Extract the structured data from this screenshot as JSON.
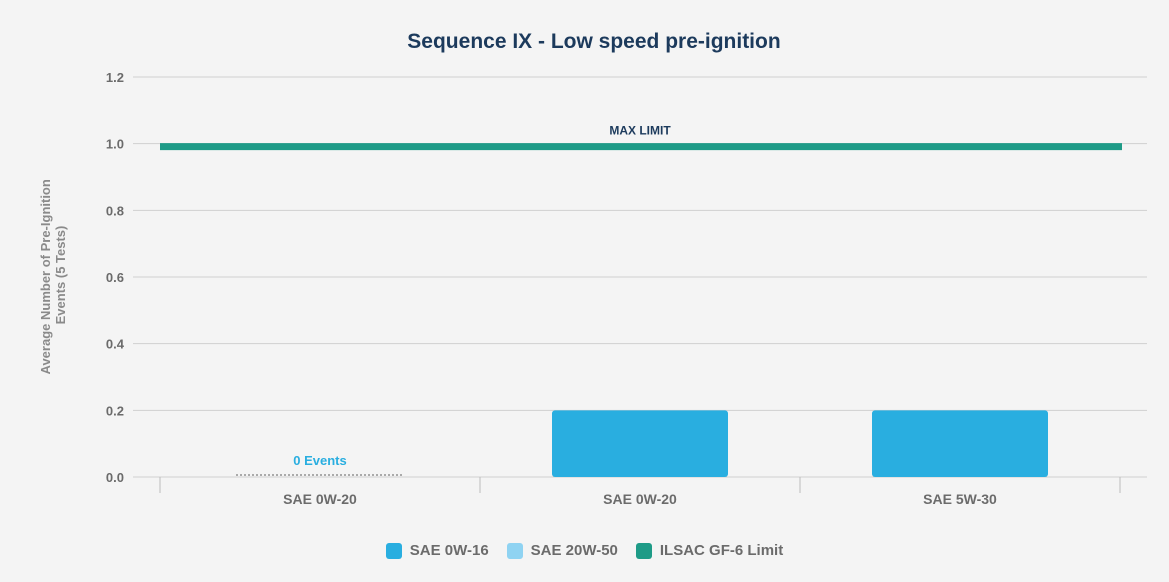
{
  "chart_data": {
    "type": "bar",
    "title": "Sequence IX - Low speed pre-ignition",
    "ylabel": "Average Number of Pre-Ignition Events (5 Tests)",
    "ylabel_lines": [
      "Average Number of Pre-Ignition",
      "Events (5 Tests)"
    ],
    "xlabel": "",
    "ylim": [
      0,
      1.2
    ],
    "yticks": [
      "0.0",
      "0.2",
      "0.4",
      "0.6",
      "0.8",
      "1.0",
      "1.2"
    ],
    "categories": [
      "SAE 0W-20",
      "SAE 0W-20",
      "SAE 5W-30"
    ],
    "values": [
      0,
      0.2,
      0.2
    ],
    "bar_colors": [
      "#8fd3f2",
      "#29aee0",
      "#29aee0"
    ],
    "zero_annotation": "0 Events",
    "limit": {
      "value": 1.0,
      "label": "MAX LIMIT",
      "color": "#1e9b87"
    },
    "grid": true,
    "legend_position": "bottom",
    "legend": [
      {
        "name": "SAE 0W-16",
        "color": "#29aee0"
      },
      {
        "name": "SAE 20W-50",
        "color": "#8fd3f2"
      },
      {
        "name": "ILSAC GF-6 Limit",
        "color": "#1e9b87"
      }
    ]
  }
}
